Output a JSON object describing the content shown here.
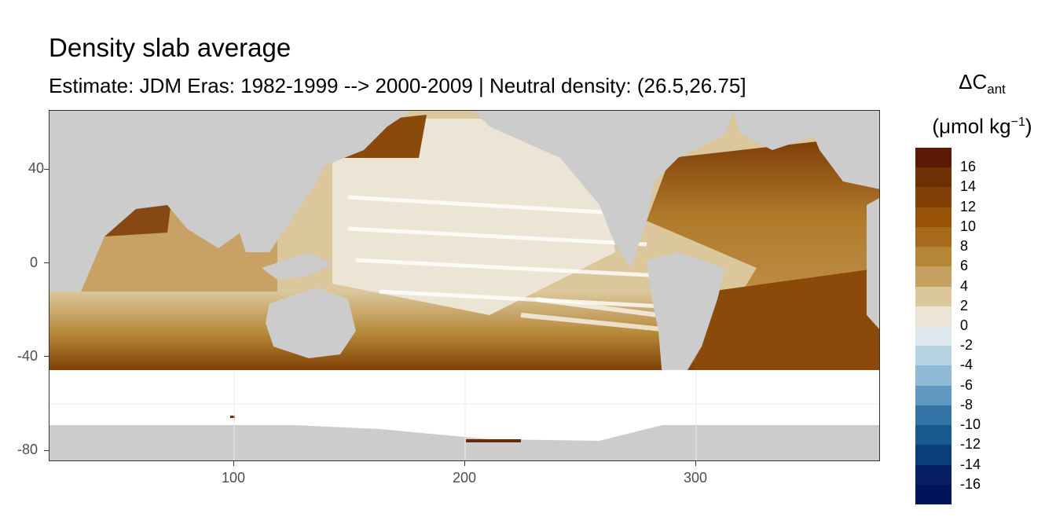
{
  "title": "Density slab average",
  "subtitle": "Estimate: JDM Eras: 1982-1999 --> 2000-2009 | Neutral density: (26.5,26.75]",
  "legend": {
    "title_symbol": "ΔC",
    "title_sub": "ant",
    "unit_pre": "(μmol kg",
    "unit_sup": "−1",
    "unit_post": ")",
    "labels": [
      "16",
      "14",
      "12",
      "10",
      "8",
      "6",
      "4",
      "2",
      "0",
      "-2",
      "-4",
      "-6",
      "-8",
      "-10",
      "-12",
      "-14",
      "-16"
    ],
    "colors": [
      "#5a1a05",
      "#6e2f05",
      "#834006",
      "#985208",
      "#a66a1c",
      "#b58636",
      "#c5a060",
      "#dcc79c",
      "#ece5d6",
      "#dde9ef",
      "#b6d3e3",
      "#8dbad5",
      "#5f98c1",
      "#3475a6",
      "#175a8f",
      "#0b3f7b",
      "#061e63",
      "#01135a"
    ]
  },
  "axes": {
    "y_ticks": [
      "40",
      "0",
      "-40",
      "-80"
    ],
    "x_ticks": [
      "100",
      "200",
      "300"
    ]
  },
  "chart_data": {
    "type": "heatmap",
    "title": "Density slab average",
    "subtitle": "Estimate: JDM Eras: 1982-1999 --> 2000-2009 | Neutral density: (26.5,26.75]",
    "xlabel": "",
    "ylabel": "",
    "xlim": [
      20,
      380
    ],
    "ylim": [
      -85,
      65
    ],
    "x_ticks": [
      100,
      200,
      300
    ],
    "y_ticks": [
      40,
      0,
      -40,
      -80
    ],
    "color_scale": {
      "min": -16,
      "max": 16,
      "step": 2
    },
    "variable": "ΔCant (μmol kg−1)",
    "land_color": "#cccccc",
    "missing_color": "#ffffff"
  }
}
